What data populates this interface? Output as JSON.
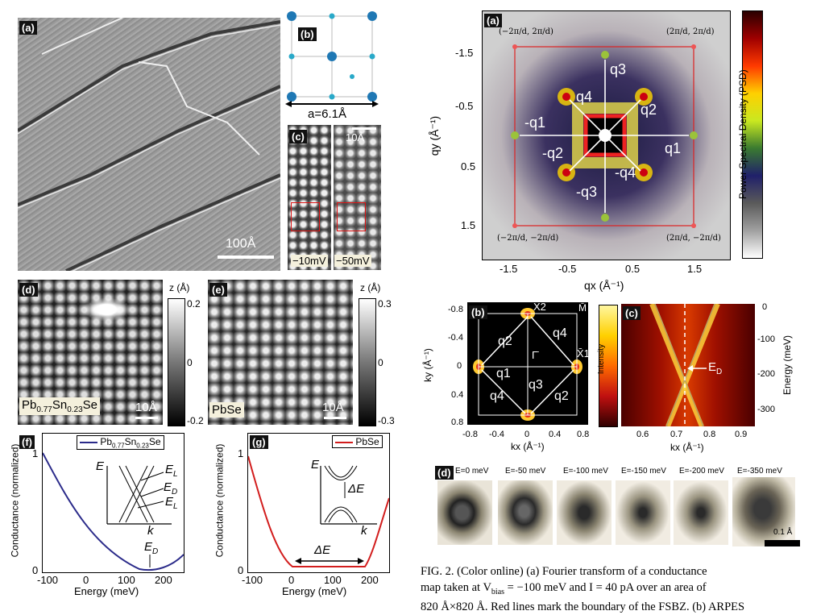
{
  "left": {
    "a": {
      "label": "(a)",
      "scale": "100Å"
    },
    "b": {
      "label": "(b)",
      "lattice": "a=6.1Å"
    },
    "c": {
      "label": "(c)",
      "scale": "10Å",
      "v1": "−10mV",
      "v2": "−50mV"
    },
    "d": {
      "label": "(d)",
      "material": "Pb",
      "sub1": "0.77",
      "el2": "Sn",
      "sub2": "0.23",
      "el3": "Se",
      "scale": "10Å",
      "cb_title": "z (Å)",
      "cb_top": "0.2",
      "cb_mid": "0",
      "cb_bot": "-0.2"
    },
    "e": {
      "label": "(e)",
      "material": "PbSe",
      "scale": "10Å",
      "cb_title": "z (Å)",
      "cb_top": "0.3",
      "cb_mid": "0",
      "cb_bot": "-0.3"
    },
    "f": {
      "label": "(f)",
      "legend": "Pb0.77Sn0.23Se",
      "ylabel": "Conductance (normalized)",
      "xlabel": "Energy (meV)",
      "yticks": [
        "1",
        "0"
      ],
      "xticks": [
        "-100",
        "0",
        "100",
        "200"
      ],
      "inset_E": "E",
      "inset_k": "k",
      "EL": "E",
      "EL_sub": "L",
      "ED": "E",
      "ED_sub": "D",
      "EL2": "E",
      "EL2_sub": "L",
      "arrow_E": "E",
      "arrow_sub": "D"
    },
    "g": {
      "label": "(g)",
      "legend": "PbSe",
      "ylabel": "Conductance (normalized)",
      "xlabel": "Energy (meV)",
      "yticks": [
        "1",
        "0"
      ],
      "xticks": [
        "-100",
        "0",
        "100",
        "200"
      ],
      "inset_E": "E",
      "inset_k": "k",
      "dE": "ΔE",
      "dE2": "ΔE"
    }
  },
  "right": {
    "a": {
      "label": "(a)",
      "xlabel": "qx (Å⁻¹)",
      "ylabel": "qy (Å⁻¹)",
      "xticks": [
        "-1.5",
        "-0.5",
        "0.5",
        "1.5"
      ],
      "yticks": [
        "-1.5",
        "-0.5",
        "0.5",
        "1.5"
      ],
      "colorbar": "Power Spectral Density (PSD)",
      "corners": [
        "(−2π/d, 2π/d)",
        "(2π/d, 2π/d)",
        "(−2π/d, −2π/d)",
        "(2π/d, −2π/d)"
      ],
      "q_labels": [
        "q3",
        "q4",
        "q2",
        "-q1",
        "q1",
        "-q2",
        "-q4",
        "-q3"
      ]
    },
    "b": {
      "label": "(b)",
      "ylabel": "ky (Å⁻¹)",
      "xlabel": "kx (Å⁻¹)",
      "yticks": [
        "-0.8",
        "-0.4",
        "0",
        "0.4",
        "0.8"
      ],
      "xticks": [
        "-0.8",
        "-0.4",
        "0",
        "0.4",
        "0.8"
      ],
      "points": [
        "X̄2",
        "M̄",
        "Γ̄",
        "X̄1"
      ],
      "q_labels": [
        "q2",
        "q4",
        "q1",
        "q3",
        "q4",
        "q2"
      ],
      "intensity": "Intensity"
    },
    "c": {
      "label": "(c)",
      "xlabel": "kx (Å⁻¹)",
      "ylabel": "Energy (meV)",
      "xticks": [
        "0.6",
        "0.7",
        "0.8",
        "0.9"
      ],
      "yticks": [
        "0",
        "-100",
        "-200",
        "-300"
      ],
      "ED": "E",
      "ED_sub": "D"
    },
    "d": {
      "label": "(d)",
      "energies": [
        "E=0 meV",
        "E=-50 meV",
        "E=-100 meV",
        "E=-150 meV",
        "E=-200 meV",
        "E=-350 meV"
      ],
      "scale": "0.1 Å"
    }
  },
  "caption": {
    "line1": "FIG. 2. (Color online) (a) Fourier transform of a conductance",
    "line2": "map taken at V",
    "line2_sub": "bias",
    "line2_rest": " = −100 meV and I = 40 pA over an area of",
    "line3": "820 Å×820 Å. Red lines mark the boundary of the FSBZ. (b) ARPES"
  }
}
